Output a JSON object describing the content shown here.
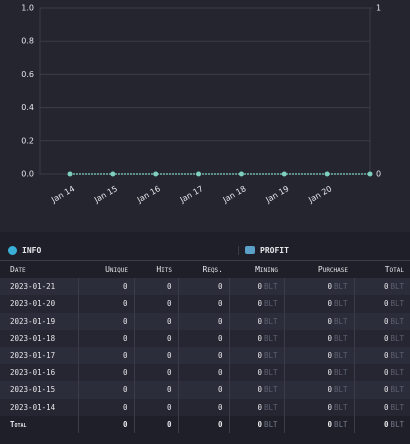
{
  "chart_data": {
    "type": "line",
    "categories": [
      "Jan 14",
      "Jan 15",
      "Jan 16",
      "Jan 17",
      "Jan 18",
      "Jan 19",
      "Jan 20",
      null
    ],
    "series": [
      {
        "color": "#7ecfc0",
        "values": [
          0,
          0,
          0,
          0,
          0,
          0,
          0,
          0
        ]
      }
    ],
    "ylim": [
      0,
      1
    ],
    "yticks": [
      {
        "value": 0,
        "label": "0.0"
      },
      0.2,
      0.4,
      0.6,
      0.8,
      {
        "value": 1,
        "label": "1.0"
      }
    ],
    "y2lim": [
      0,
      1
    ],
    "y2ticks": [
      0,
      1
    ],
    "grid": true
  },
  "table": {
    "sections": [
      "INFO",
      "PROFIT"
    ],
    "columns": [
      "Date",
      "Unique",
      "Hits",
      "Reqs.",
      "Mining",
      "Purchase",
      "Total"
    ],
    "unit": "BLT",
    "rows": [
      [
        "2023-01-21",
        0,
        0,
        0,
        0,
        0,
        0
      ],
      [
        "2023-01-20",
        0,
        0,
        0,
        0,
        0,
        0
      ],
      [
        "2023-01-19",
        0,
        0,
        0,
        0,
        0,
        0
      ],
      [
        "2023-01-18",
        0,
        0,
        0,
        0,
        0,
        0
      ],
      [
        "2023-01-17",
        0,
        0,
        0,
        0,
        0,
        0
      ],
      [
        "2023-01-16",
        0,
        0,
        0,
        0,
        0,
        0
      ],
      [
        "2023-01-15",
        0,
        0,
        0,
        0,
        0,
        0
      ],
      [
        "2023-01-14",
        0,
        0,
        0,
        0,
        0,
        0
      ]
    ],
    "total": [
      "Total",
      0,
      0,
      0,
      0,
      0,
      0
    ]
  }
}
